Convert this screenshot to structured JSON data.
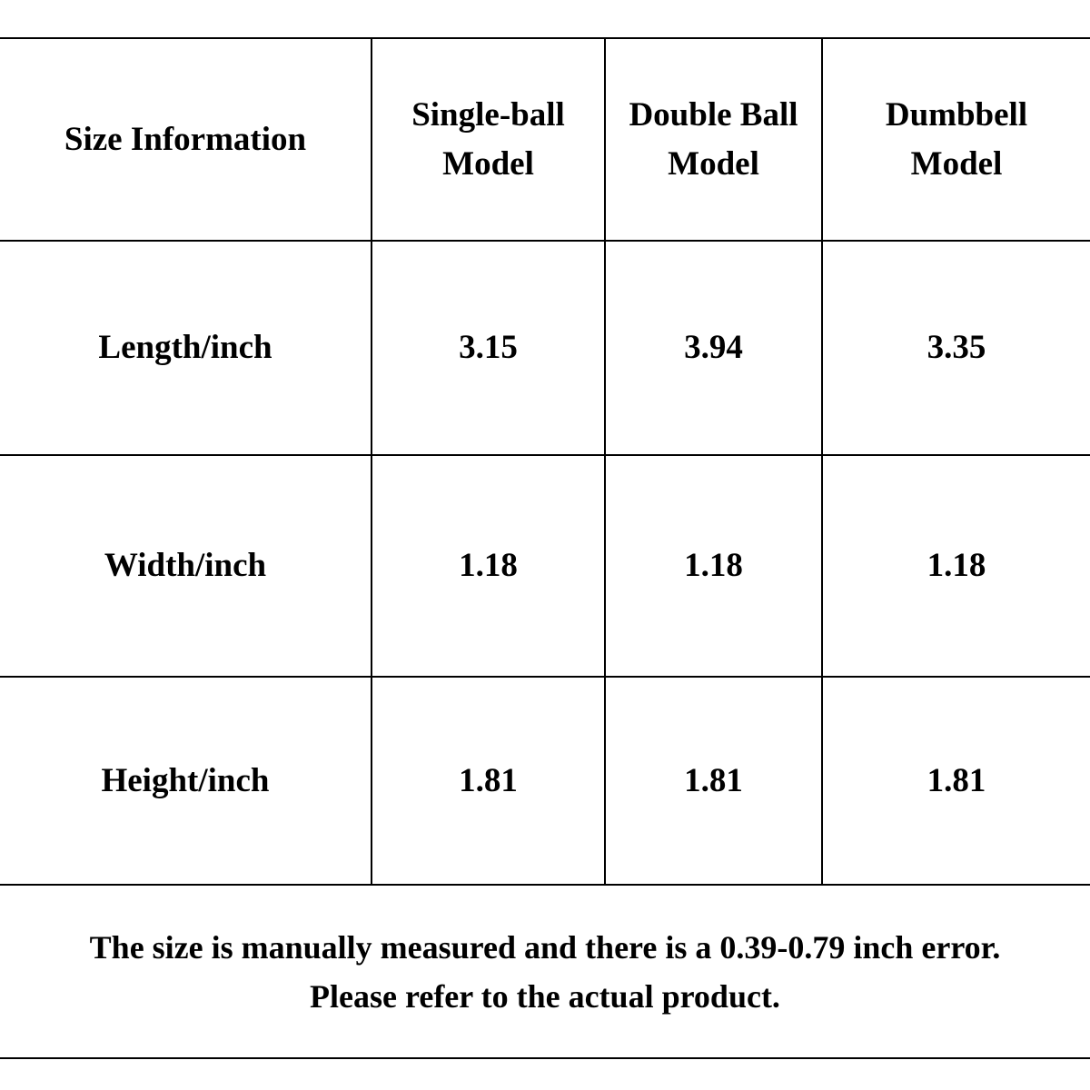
{
  "table": {
    "headers": [
      "Size Information",
      "Single-ball Model",
      "Double Ball Model",
      "Dumbbell Model"
    ],
    "rows": [
      {
        "label": "Length/inch",
        "values": [
          "3.15",
          "3.94",
          "3.35"
        ]
      },
      {
        "label": "Width/inch",
        "values": [
          "1.18",
          "1.18",
          "1.18"
        ]
      },
      {
        "label": "Height/inch",
        "values": [
          "1.81",
          "1.81",
          "1.81"
        ]
      }
    ]
  },
  "note": {
    "line1": "The size is manually measured and there is a 0.39-0.79 inch error.",
    "line2": "Please refer to the actual product."
  }
}
